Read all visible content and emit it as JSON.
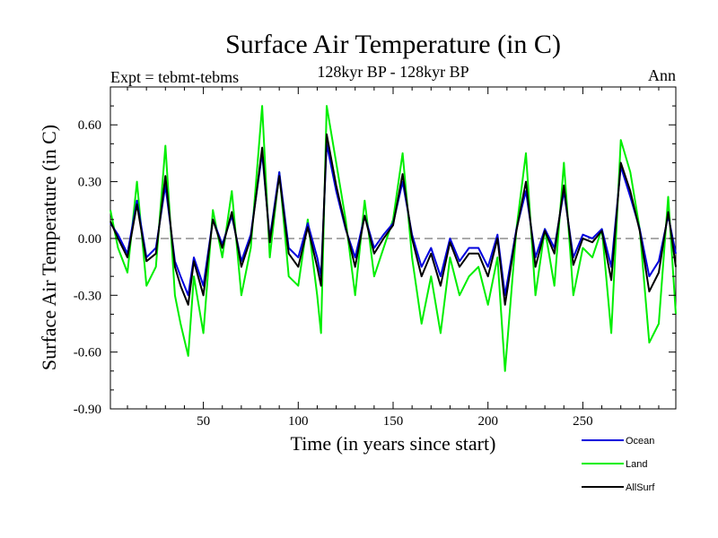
{
  "chart_data": {
    "type": "line",
    "title": "Surface Air Temperature (in C)",
    "subtitle": "128kyr BP - 128kyr BP",
    "left_note": "Expt = tebmt-tebms",
    "right_note": "Ann",
    "xlabel": "Time (in years since start)",
    "ylabel": "Surface Air Temperature (in C)",
    "xlim": [
      1,
      299
    ],
    "ylim": [
      -0.9,
      0.8
    ],
    "xticks": [
      50,
      100,
      150,
      200,
      250
    ],
    "xtick_labels": [
      "50",
      "100",
      "150",
      "200",
      "250"
    ],
    "yticks": [
      -0.9,
      -0.6,
      -0.3,
      0.0,
      0.3,
      0.6
    ],
    "ytick_labels": [
      "-0.90",
      "-0.60",
      "-0.30",
      "0.00",
      "0.30",
      "0.60"
    ],
    "zero_line": "dashed",
    "legend_position": "bottom-right outside",
    "series": [
      {
        "name": "Land",
        "color": "#00ee00",
        "x": [
          1,
          5,
          10,
          15,
          20,
          25,
          30,
          35,
          38,
          42,
          45,
          50,
          55,
          60,
          65,
          70,
          75,
          81,
          85,
          90,
          95,
          100,
          105,
          110,
          112,
          115,
          120,
          125,
          130,
          135,
          140,
          145,
          150,
          155,
          160,
          165,
          170,
          175,
          180,
          185,
          190,
          195,
          200,
          205,
          209,
          215,
          220,
          225,
          230,
          235,
          240,
          245,
          250,
          255,
          260,
          265,
          270,
          275,
          280,
          285,
          290,
          295,
          299
        ],
        "values": [
          0.15,
          -0.05,
          -0.18,
          0.3,
          -0.25,
          -0.15,
          0.49,
          -0.3,
          -0.45,
          -0.62,
          -0.2,
          -0.5,
          0.15,
          -0.1,
          0.25,
          -0.3,
          -0.05,
          0.7,
          -0.1,
          0.35,
          -0.2,
          -0.25,
          0.1,
          -0.3,
          -0.5,
          0.7,
          0.4,
          0.1,
          -0.3,
          0.2,
          -0.2,
          -0.05,
          0.1,
          0.45,
          -0.1,
          -0.45,
          -0.2,
          -0.5,
          -0.1,
          -0.3,
          -0.2,
          -0.15,
          -0.35,
          -0.1,
          -0.7,
          0.05,
          0.45,
          -0.3,
          0.05,
          -0.25,
          0.4,
          -0.3,
          -0.05,
          -0.1,
          0.05,
          -0.5,
          0.52,
          0.35,
          0.05,
          -0.55,
          -0.45,
          0.22,
          -0.4
        ]
      },
      {
        "name": "Ocean",
        "color": "#0000dd",
        "x": [
          1,
          5,
          10,
          15,
          20,
          25,
          30,
          35,
          38,
          42,
          45,
          50,
          55,
          60,
          65,
          70,
          75,
          81,
          85,
          90,
          95,
          100,
          105,
          110,
          112,
          115,
          120,
          125,
          130,
          135,
          140,
          145,
          150,
          155,
          160,
          165,
          170,
          175,
          180,
          185,
          190,
          195,
          200,
          205,
          209,
          215,
          220,
          225,
          230,
          235,
          240,
          245,
          250,
          255,
          260,
          265,
          270,
          275,
          280,
          285,
          290,
          295,
          299
        ],
        "values": [
          0.08,
          0.02,
          -0.08,
          0.2,
          -0.1,
          -0.05,
          0.28,
          -0.12,
          -0.2,
          -0.3,
          -0.1,
          -0.25,
          0.1,
          -0.03,
          0.12,
          -0.12,
          0.02,
          0.45,
          0.0,
          0.35,
          -0.05,
          -0.1,
          0.08,
          -0.1,
          -0.2,
          0.5,
          0.25,
          0.05,
          -0.1,
          0.12,
          -0.05,
          0.02,
          0.08,
          0.3,
          0.02,
          -0.15,
          -0.05,
          -0.2,
          0.0,
          -0.12,
          -0.05,
          -0.05,
          -0.15,
          0.02,
          -0.3,
          0.05,
          0.25,
          -0.1,
          0.05,
          -0.05,
          0.25,
          -0.1,
          0.02,
          0.0,
          0.05,
          -0.15,
          0.38,
          0.22,
          0.05,
          -0.2,
          -0.12,
          0.12,
          -0.08
        ]
      },
      {
        "name": "AllSurf",
        "color": "#000000",
        "x": [
          1,
          5,
          10,
          15,
          20,
          25,
          30,
          35,
          38,
          42,
          45,
          50,
          55,
          60,
          65,
          70,
          75,
          81,
          85,
          90,
          95,
          100,
          105,
          110,
          112,
          115,
          120,
          125,
          130,
          135,
          140,
          145,
          150,
          155,
          160,
          165,
          170,
          175,
          180,
          185,
          190,
          195,
          200,
          205,
          209,
          215,
          220,
          225,
          230,
          235,
          240,
          245,
          250,
          255,
          260,
          265,
          270,
          275,
          280,
          285,
          290,
          295,
          299
        ],
        "values": [
          0.09,
          0.0,
          -0.1,
          0.18,
          -0.12,
          -0.08,
          0.33,
          -0.15,
          -0.25,
          -0.35,
          -0.12,
          -0.3,
          0.1,
          -0.05,
          0.14,
          -0.15,
          0.0,
          0.48,
          -0.02,
          0.33,
          -0.08,
          -0.15,
          0.06,
          -0.15,
          -0.25,
          0.55,
          0.28,
          0.06,
          -0.15,
          0.12,
          -0.08,
          0.0,
          0.07,
          0.34,
          0.0,
          -0.2,
          -0.08,
          -0.25,
          -0.02,
          -0.15,
          -0.08,
          -0.08,
          -0.2,
          0.0,
          -0.35,
          0.04,
          0.3,
          -0.15,
          0.04,
          -0.08,
          0.28,
          -0.14,
          0.0,
          -0.02,
          0.04,
          -0.22,
          0.4,
          0.25,
          0.04,
          -0.28,
          -0.18,
          0.14,
          -0.15
        ]
      }
    ],
    "legend_order": [
      "Ocean",
      "Land",
      "AllSurf"
    ]
  }
}
